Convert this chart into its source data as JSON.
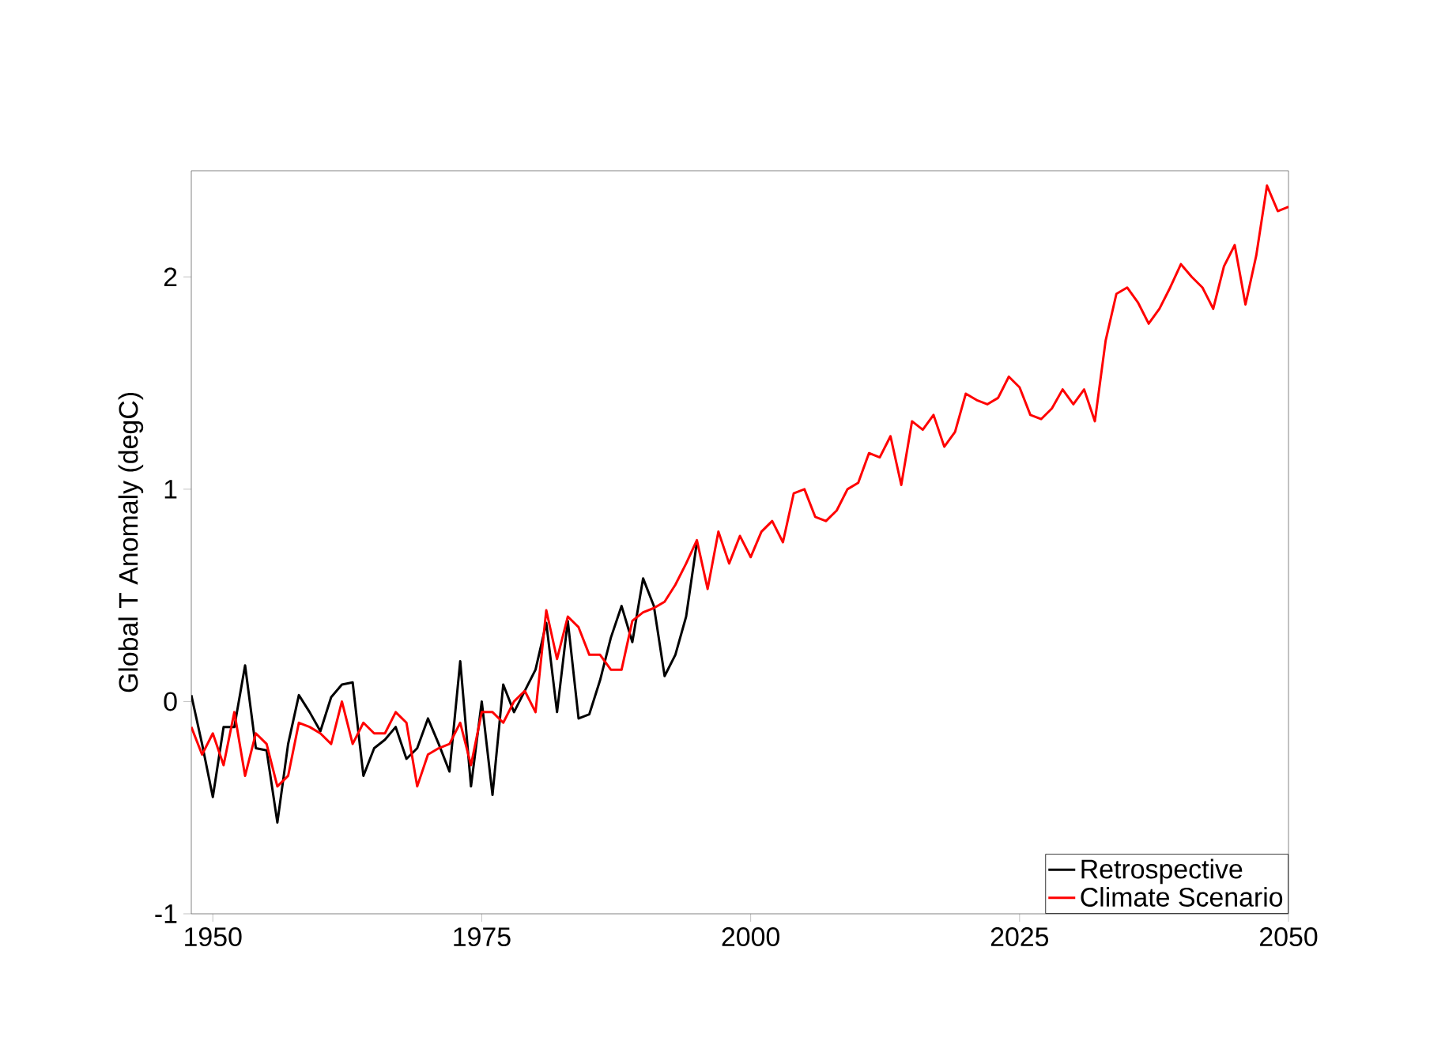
{
  "chart_data": {
    "type": "line",
    "ylabel": "Global T Anomaly (degC)",
    "xlim": [
      1948,
      2050
    ],
    "ylim": [
      -1,
      2.5
    ],
    "xticks": [
      1950,
      1975,
      2000,
      2025,
      2050
    ],
    "yticks": [
      -1,
      0,
      1,
      2
    ],
    "legend": "bottom right",
    "grid": false,
    "series": [
      {
        "name": "Retrospective",
        "color": "#000000",
        "x": [
          1948,
          1949,
          1950,
          1951,
          1952,
          1953,
          1954,
          1955,
          1956,
          1957,
          1958,
          1959,
          1960,
          1961,
          1962,
          1963,
          1964,
          1965,
          1966,
          1967,
          1968,
          1969,
          1970,
          1971,
          1972,
          1973,
          1974,
          1975,
          1976,
          1977,
          1978,
          1979,
          1980,
          1981,
          1982,
          1983,
          1984,
          1985,
          1986,
          1987,
          1988,
          1989,
          1990,
          1991,
          1992,
          1993,
          1994,
          1995
        ],
        "values": [
          0.03,
          -0.2,
          -0.45,
          -0.12,
          -0.12,
          0.17,
          -0.22,
          -0.23,
          -0.57,
          -0.2,
          0.03,
          -0.05,
          -0.14,
          0.02,
          0.08,
          0.09,
          -0.35,
          -0.22,
          -0.18,
          -0.12,
          -0.27,
          -0.22,
          -0.08,
          -0.2,
          -0.33,
          0.19,
          -0.4,
          0.0,
          -0.44,
          0.08,
          -0.05,
          0.05,
          0.15,
          0.37,
          -0.05,
          0.38,
          -0.08,
          -0.06,
          0.1,
          0.3,
          0.45,
          0.28,
          0.58,
          0.45,
          0.12,
          0.22,
          0.4,
          0.75
        ]
      },
      {
        "name": "Climate Scenario",
        "color": "#ff0000",
        "x": [
          1948,
          1949,
          1950,
          1951,
          1952,
          1953,
          1954,
          1955,
          1956,
          1957,
          1958,
          1959,
          1960,
          1961,
          1962,
          1963,
          1964,
          1965,
          1966,
          1967,
          1968,
          1969,
          1970,
          1971,
          1972,
          1973,
          1974,
          1975,
          1976,
          1977,
          1978,
          1979,
          1980,
          1981,
          1982,
          1983,
          1984,
          1985,
          1986,
          1987,
          1988,
          1989,
          1990,
          1991,
          1992,
          1993,
          1994,
          1995,
          1996,
          1997,
          1998,
          1999,
          2000,
          2001,
          2002,
          2003,
          2004,
          2005,
          2006,
          2007,
          2008,
          2009,
          2010,
          2011,
          2012,
          2013,
          2014,
          2015,
          2016,
          2017,
          2018,
          2019,
          2020,
          2021,
          2022,
          2023,
          2024,
          2025,
          2026,
          2027,
          2028,
          2029,
          2030,
          2031,
          2032,
          2033,
          2034,
          2035,
          2036,
          2037,
          2038,
          2039,
          2040,
          2041,
          2042,
          2043,
          2044,
          2045,
          2046,
          2047,
          2048,
          2049,
          2050
        ],
        "values": [
          -0.12,
          -0.25,
          -0.15,
          -0.3,
          -0.05,
          -0.35,
          -0.15,
          -0.2,
          -0.4,
          -0.35,
          -0.1,
          -0.12,
          -0.15,
          -0.2,
          0.0,
          -0.2,
          -0.1,
          -0.15,
          -0.15,
          -0.05,
          -0.1,
          -0.4,
          -0.25,
          -0.22,
          -0.2,
          -0.1,
          -0.3,
          -0.05,
          -0.05,
          -0.1,
          0.0,
          0.05,
          -0.05,
          0.43,
          0.2,
          0.4,
          0.35,
          0.22,
          0.22,
          0.15,
          0.15,
          0.38,
          0.42,
          0.44,
          0.47,
          0.55,
          0.65,
          0.76,
          0.53,
          0.8,
          0.65,
          0.78,
          0.68,
          0.8,
          0.85,
          0.75,
          0.98,
          1.0,
          0.87,
          0.85,
          0.9,
          1.0,
          1.03,
          1.17,
          1.15,
          1.25,
          1.02,
          1.32,
          1.28,
          1.35,
          1.2,
          1.27,
          1.45,
          1.42,
          1.4,
          1.43,
          1.53,
          1.48,
          1.35,
          1.33,
          1.38,
          1.47,
          1.4,
          1.47,
          1.32,
          1.7,
          1.92,
          1.95,
          1.88,
          1.78,
          1.85,
          1.95,
          2.06,
          2.0,
          1.95,
          1.85,
          2.05,
          2.15,
          1.87,
          2.1,
          2.43,
          2.31,
          2.33
        ]
      }
    ]
  }
}
